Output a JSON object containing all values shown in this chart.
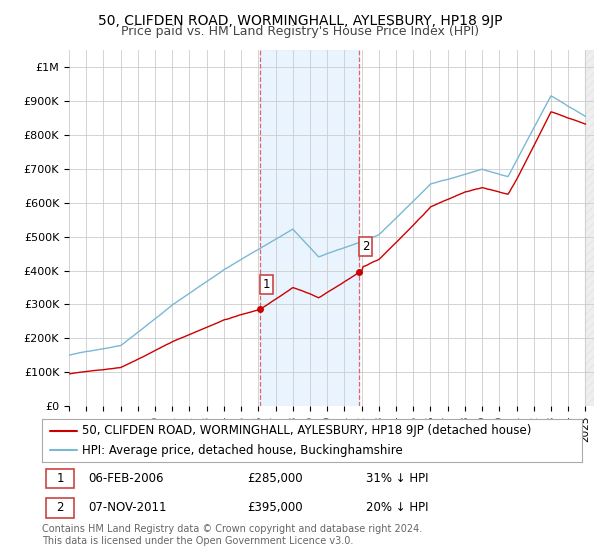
{
  "title": "50, CLIFDEN ROAD, WORMINGHALL, AYLESBURY, HP18 9JP",
  "subtitle": "Price paid vs. HM Land Registry's House Price Index (HPI)",
  "ylabel_ticks": [
    "£0",
    "£100K",
    "£200K",
    "£300K",
    "£400K",
    "£500K",
    "£600K",
    "£700K",
    "£800K",
    "£900K",
    "£1M"
  ],
  "ytick_values": [
    0,
    100000,
    200000,
    300000,
    400000,
    500000,
    600000,
    700000,
    800000,
    900000,
    1000000
  ],
  "ylim": [
    0,
    1050000
  ],
  "xlim": [
    1995,
    2025.5
  ],
  "sale1_date_num": 2006.09,
  "sale1_price": 285000,
  "sale1_label": "1",
  "sale1_text": "06-FEB-2006",
  "sale1_price_str": "£285,000",
  "sale1_pct": "31% ↓ HPI",
  "sale2_date_num": 2011.84,
  "sale2_price": 395000,
  "sale2_label": "2",
  "sale2_text": "07-NOV-2011",
  "sale2_price_str": "£395,000",
  "sale2_pct": "20% ↓ HPI",
  "legend_line1": "50, CLIFDEN ROAD, WORMINGHALL, AYLESBURY, HP18 9JP (detached house)",
  "legend_line2": "HPI: Average price, detached house, Buckinghamshire",
  "footer": "Contains HM Land Registry data © Crown copyright and database right 2024.\nThis data is licensed under the Open Government Licence v3.0.",
  "hpi_color": "#7ab8d4",
  "price_color": "#cc0000",
  "sale_marker_color": "#cc0000",
  "vline_color": "#dd6666",
  "shade_color": "#ddeeff",
  "grid_color": "#cccccc",
  "bg_color": "#ffffff",
  "title_fontsize": 10,
  "subtitle_fontsize": 9,
  "tick_fontsize": 8,
  "legend_fontsize": 8.5,
  "footer_fontsize": 7
}
